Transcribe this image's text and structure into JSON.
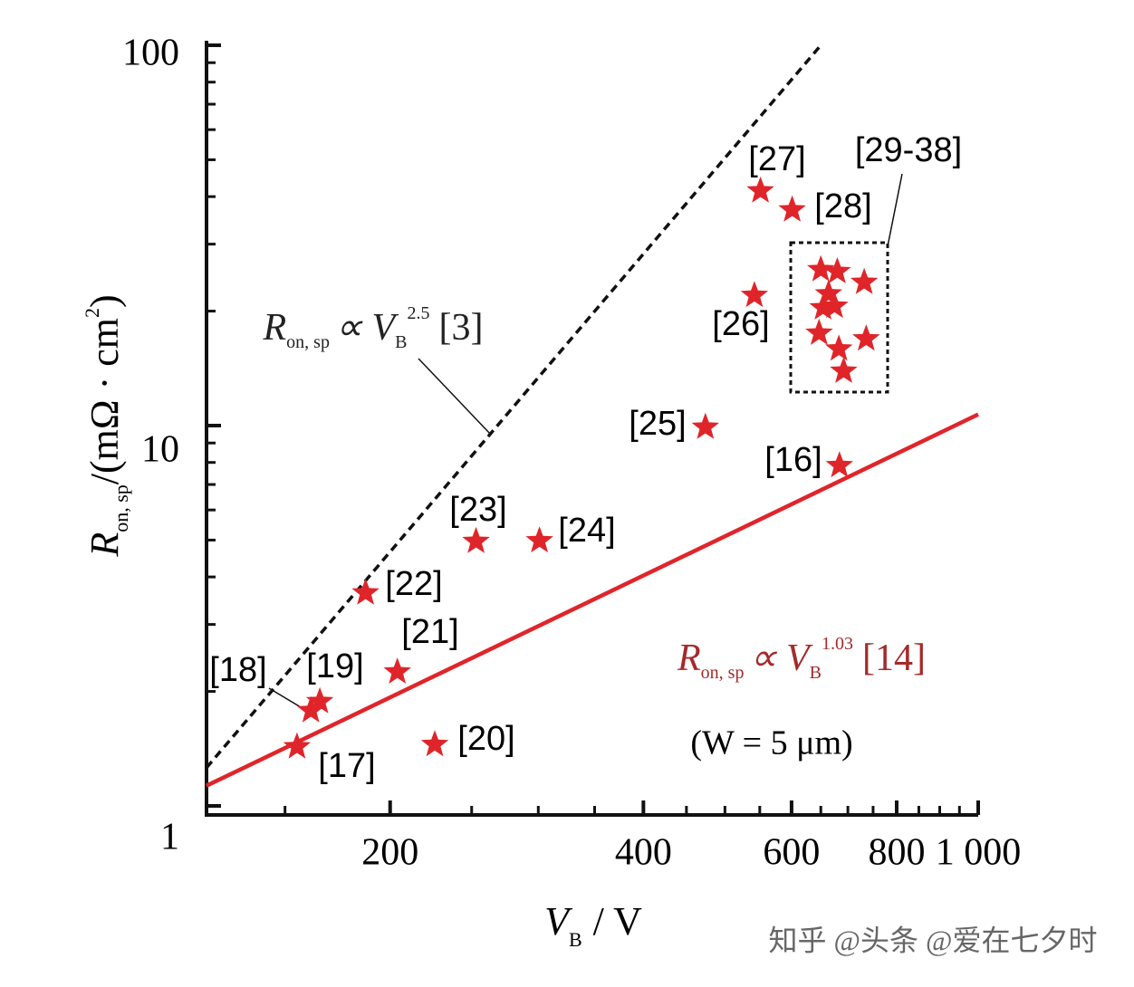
{
  "chart_data": {
    "type": "scatter",
    "x_label": [
      "V",
      "B",
      "/ V"
    ],
    "y_label": [
      "R",
      "on, sp",
      "/(mΩ · cm",
      "2",
      ")"
    ],
    "log_x": true,
    "log_y": true,
    "xlim": [
      121,
      1000
    ],
    "ylim": [
      1,
      100
    ],
    "xticks": [
      200,
      400,
      600,
      800,
      {
        "value": 1000,
        "label": "1 000"
      }
    ],
    "xminorticks": [
      150,
      250,
      300,
      350,
      450,
      500,
      550,
      650,
      700,
      750,
      850,
      900,
      950
    ],
    "yticks": [
      1,
      10,
      100
    ],
    "yminorticks": [
      2,
      3,
      4,
      5,
      6,
      7,
      8,
      9,
      20,
      30,
      40,
      50,
      60,
      70,
      80,
      90
    ],
    "color": "#e0252a",
    "x": [
      155,
      161,
      165,
      226,
      204,
      187,
      253,
      301,
      474,
      542,
      551,
      601,
      684,
      650,
      680,
      732,
      664,
      675,
      654,
      647,
      683,
      736,
      692
    ],
    "y": [
      1.43,
      1.78,
      1.88,
      1.45,
      2.25,
      3.63,
      4.96,
      4.98,
      9.9,
      22,
      41.4,
      36.9,
      7.85,
      25.7,
      25.4,
      23.8,
      22.2,
      20.6,
      20.4,
      17.5,
      15.9,
      16.9,
      13.9
    ],
    "point_labels": [
      "[17]",
      "[18]",
      "[19]",
      "[20]",
      "[21]",
      "[22]",
      "[23]",
      "[24]",
      "[25]",
      "[26]",
      "[27]",
      "[28]",
      "[16]",
      null,
      null,
      null,
      null,
      null,
      null,
      null,
      null,
      null,
      null
    ],
    "group_label": "[29-38]",
    "lines": [
      {
        "x": [
          121,
          650
        ],
        "y": [
          1.26,
          100
        ],
        "color": "#111111",
        "dashed": true,
        "equation": [
          "R",
          "on, sp",
          "∝ V",
          "B",
          "2.5",
          "[3]"
        ]
      },
      {
        "x": [
          121,
          1000
        ],
        "y": [
          1.13,
          10.7
        ],
        "color": "#e0252a",
        "dashed": false,
        "equation": [
          "R",
          "on, sp",
          "∝ V",
          "B",
          "1.03",
          "[14]"
        ]
      }
    ],
    "note": "(W = 5 μm)",
    "watermark": "知乎 @头条 @爱在七夕时"
  }
}
